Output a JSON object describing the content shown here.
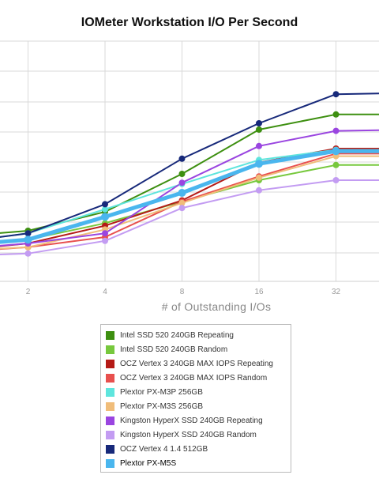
{
  "chart_data": {
    "type": "line",
    "title": "IOMeter Workstation I/O Per Second",
    "xlabel": "# of Outstanding I/Os",
    "ylabel": "",
    "x": [
      1,
      2,
      4,
      8,
      16,
      32,
      64
    ],
    "x_tick_labels": [
      "2",
      "4",
      "8",
      "16",
      "32"
    ],
    "y_tick_labels": [],
    "ylim": [
      0,
      9.5
    ],
    "grid": true,
    "legend_position": "bottom",
    "series": [
      {
        "name": "Intel SSD 520 240GB Repeating",
        "color": "#3d8f10",
        "values": [
          1.75,
          2.0,
          2.75,
          4.25,
          6.0,
          6.6,
          6.6
        ]
      },
      {
        "name": "Intel SSD 520 240GB Random",
        "color": "#77c83d",
        "values": [
          1.4,
          1.65,
          2.3,
          3.15,
          4.0,
          4.6,
          4.6
        ]
      },
      {
        "name": "OCZ Vertex 3 240GB MAX IOPS Repeating",
        "color": "#b51a16",
        "values": [
          1.2,
          1.5,
          2.2,
          3.2,
          4.7,
          5.25,
          5.25
        ]
      },
      {
        "name": "OCZ Vertex 3 240GB MAX IOPS Random",
        "color": "#e8504e",
        "values": [
          1.15,
          1.35,
          1.75,
          3.15,
          4.15,
          5.05,
          5.05
        ]
      },
      {
        "name": "Plextor PX-M3P 256GB",
        "color": "#5ee5dd",
        "values": [
          1.5,
          1.9,
          2.85,
          3.85,
          4.8,
          5.2,
          5.2
        ]
      },
      {
        "name": "Plextor PX-M3S 256GB",
        "color": "#f0bd7a",
        "values": [
          1.2,
          1.35,
          2.05,
          3.1,
          4.1,
          4.95,
          4.95
        ]
      },
      {
        "name": "Kingston HyperX SSD 240GB Repeating",
        "color": "#9a45e0",
        "values": [
          1.25,
          1.5,
          1.9,
          3.9,
          5.35,
          5.95,
          6.0
        ]
      },
      {
        "name": "Kingston HyperX SSD 240GB Random",
        "color": "#c39cf2",
        "values": [
          1.0,
          1.1,
          1.6,
          2.9,
          3.6,
          4.0,
          4.0
        ]
      },
      {
        "name": "OCZ Vertex 4 1.4 512GB",
        "color": "#17297a",
        "values": [
          1.5,
          1.9,
          3.05,
          4.85,
          6.25,
          7.4,
          7.45
        ]
      },
      {
        "name": "Plextor PX-M5S",
        "color": "#4ab6ee",
        "values": [
          1.4,
          1.65,
          2.55,
          3.5,
          4.65,
          5.15,
          5.15
        ]
      }
    ]
  }
}
